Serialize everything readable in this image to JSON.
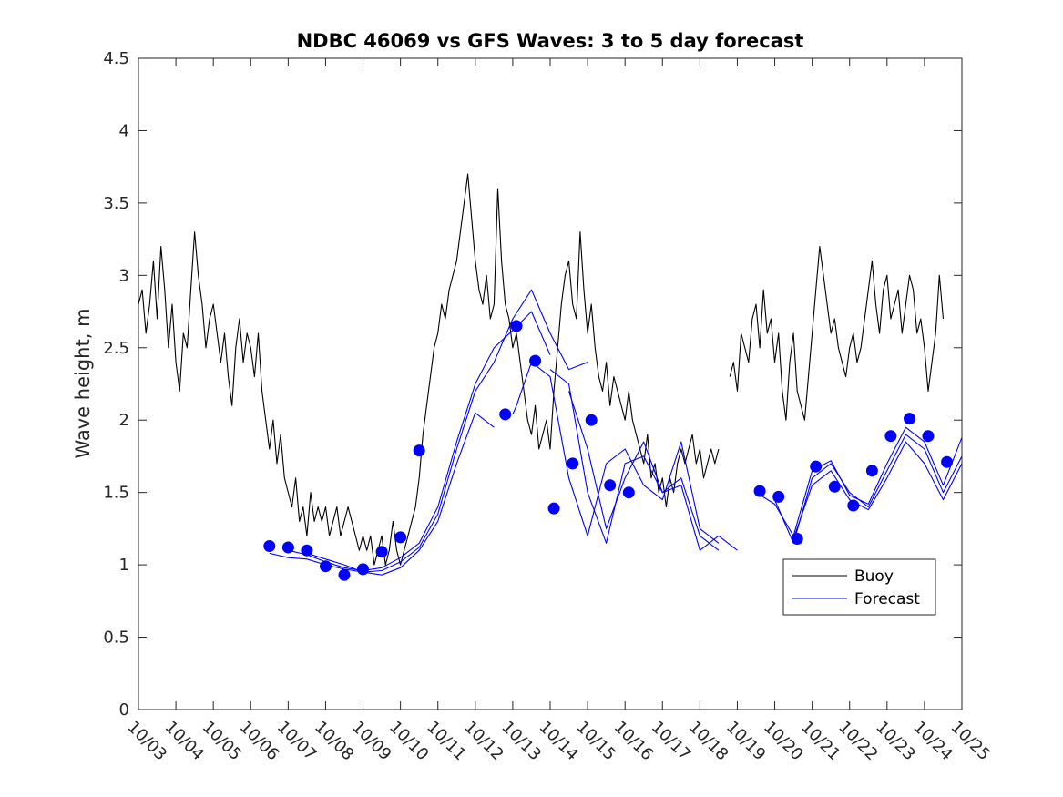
{
  "chart_data": {
    "type": "line",
    "title": "NDBC 46069 vs GFS Waves: 3 to 5 day forecast",
    "xlabel": "",
    "ylabel": "Wave height, m",
    "xlim": [
      0,
      22
    ],
    "ylim": [
      0,
      4.5
    ],
    "x_tick_labels": [
      "10/03",
      "10/04",
      "10/05",
      "10/06",
      "10/07",
      "10/08",
      "10/09",
      "10/10",
      "10/11",
      "10/12",
      "10/13",
      "10/14",
      "10/15",
      "10/16",
      "10/17",
      "10/18",
      "10/19",
      "10/20",
      "10/21",
      "10/22",
      "10/23",
      "10/24",
      "10/25"
    ],
    "y_ticks": [
      0,
      0.5,
      1,
      1.5,
      2,
      2.5,
      3,
      3.5,
      4,
      4.5
    ],
    "y_tick_labels": [
      "0",
      "0.5",
      "1",
      "1.5",
      "2",
      "2.5",
      "3",
      "3.5",
      "4",
      "4.5"
    ],
    "legend": {
      "location": "lower-right",
      "entries": [
        "Buoy",
        "Forecast"
      ]
    },
    "colors": {
      "buoy": "#000000",
      "forecast": "#0000ff",
      "axes": "#262626"
    },
    "series": [
      {
        "name": "Buoy",
        "segments": [
          {
            "x": [
              0.0,
              0.1,
              0.2,
              0.3,
              0.4,
              0.5,
              0.6,
              0.7,
              0.8,
              0.9,
              1.0,
              1.1,
              1.2,
              1.3,
              1.4,
              1.5,
              1.6,
              1.7,
              1.8,
              1.9,
              2.0,
              2.1,
              2.2,
              2.3,
              2.4,
              2.5,
              2.6,
              2.7,
              2.8,
              2.9,
              3.0,
              3.1,
              3.2,
              3.3,
              3.4,
              3.5,
              3.6,
              3.7,
              3.8,
              3.9,
              4.0,
              4.1,
              4.2,
              4.3,
              4.4,
              4.5,
              4.6,
              4.7,
              4.8,
              4.9,
              5.0,
              5.1,
              5.2,
              5.3,
              5.4,
              5.5,
              5.6,
              5.7,
              5.8,
              5.9,
              6.0,
              6.1,
              6.2,
              6.3,
              6.4,
              6.5,
              6.6,
              6.7,
              6.8,
              6.9,
              7.0,
              7.1,
              7.2,
              7.3,
              7.4,
              7.5,
              7.6,
              7.7,
              7.8,
              7.9,
              8.0,
              8.1,
              8.2,
              8.3,
              8.4,
              8.5,
              8.6,
              8.7,
              8.8,
              8.9,
              9.0,
              9.1,
              9.2,
              9.3,
              9.4,
              9.5,
              9.6,
              9.7,
              9.8,
              9.9,
              10.0,
              10.1,
              10.2,
              10.3,
              10.4,
              10.5,
              10.6,
              10.7,
              10.8,
              10.9,
              11.0,
              11.1,
              11.2,
              11.3,
              11.4,
              11.5,
              11.6,
              11.7,
              11.8,
              11.9,
              12.0,
              12.1,
              12.2,
              12.3,
              12.4,
              12.5,
              12.6,
              12.7,
              12.8,
              12.9,
              13.0,
              13.1,
              13.2,
              13.3,
              13.4,
              13.5,
              13.6,
              13.7,
              13.8,
              13.9,
              14.0,
              14.1,
              14.2,
              14.3,
              14.4,
              14.5,
              14.6,
              14.7,
              14.8,
              14.9,
              15.0,
              15.1,
              15.2,
              15.3,
              15.4,
              15.5
            ],
            "y": [
              2.8,
              2.9,
              2.6,
              2.8,
              3.1,
              2.7,
              3.2,
              2.9,
              2.5,
              2.8,
              2.4,
              2.2,
              2.6,
              2.5,
              2.9,
              3.3,
              3.0,
              2.8,
              2.5,
              2.7,
              2.8,
              2.6,
              2.4,
              2.6,
              2.3,
              2.1,
              2.5,
              2.7,
              2.4,
              2.6,
              2.5,
              2.3,
              2.6,
              2.2,
              2.0,
              1.8,
              2.0,
              1.7,
              1.9,
              1.6,
              1.5,
              1.4,
              1.6,
              1.3,
              1.4,
              1.2,
              1.5,
              1.3,
              1.4,
              1.3,
              1.4,
              1.2,
              1.3,
              1.4,
              1.2,
              1.3,
              1.4,
              1.3,
              1.2,
              1.1,
              1.2,
              1.1,
              1.2,
              1.0,
              1.1,
              1.2,
              1.0,
              1.1,
              1.3,
              1.1,
              1.0,
              1.1,
              1.2,
              1.3,
              1.4,
              1.6,
              1.9,
              2.1,
              2.3,
              2.5,
              2.6,
              2.8,
              2.7,
              2.9,
              3.0,
              3.1,
              3.3,
              3.5,
              3.7,
              3.4,
              3.1,
              2.9,
              2.8,
              3.0,
              2.7,
              2.8,
              3.6,
              3.1,
              2.8,
              2.7,
              2.5,
              2.6,
              2.4,
              2.2,
              2.0,
              1.9,
              2.1,
              1.8,
              1.9,
              2.0,
              1.8,
              2.2,
              2.5,
              2.8,
              3.0,
              3.1,
              2.8,
              2.7,
              3.3,
              2.9,
              2.6,
              2.8,
              2.5,
              2.3,
              2.2,
              2.4,
              2.1,
              2.3,
              2.2,
              2.1,
              2.0,
              2.2,
              2.0,
              1.9,
              1.8,
              1.7,
              1.9,
              1.6,
              1.7,
              1.5,
              1.6,
              1.4,
              1.6,
              1.5,
              1.7,
              1.8,
              1.7,
              1.8,
              1.9,
              1.7,
              1.8,
              1.6,
              1.7,
              1.8,
              1.7,
              1.8
            ]
          },
          {
            "x": [
              15.8,
              15.9,
              16.0,
              16.1,
              16.2,
              16.3,
              16.4,
              16.5,
              16.6,
              16.7,
              16.8,
              16.9,
              17.0,
              17.1,
              17.2,
              17.3,
              17.4,
              17.5,
              17.6,
              17.7,
              17.8,
              17.9,
              18.0,
              18.1,
              18.2,
              18.3,
              18.4,
              18.5,
              18.6,
              18.7,
              18.8,
              18.9,
              19.0,
              19.1,
              19.2,
              19.3,
              19.4,
              19.5,
              19.6,
              19.7,
              19.8,
              19.9,
              20.0,
              20.1,
              20.2,
              20.3,
              20.4,
              20.5,
              20.6,
              20.7,
              20.8,
              20.9,
              21.0,
              21.1,
              21.2,
              21.3,
              21.4,
              21.5
            ],
            "y": [
              2.3,
              2.4,
              2.2,
              2.6,
              2.5,
              2.4,
              2.7,
              2.8,
              2.5,
              2.9,
              2.6,
              2.7,
              2.4,
              2.6,
              2.2,
              2.0,
              2.4,
              2.6,
              2.2,
              2.1,
              2.0,
              2.3,
              2.6,
              2.9,
              3.2,
              3.0,
              2.8,
              2.6,
              2.7,
              2.5,
              2.4,
              2.3,
              2.5,
              2.6,
              2.4,
              2.5,
              2.7,
              2.9,
              3.1,
              2.8,
              2.6,
              2.9,
              3.0,
              2.7,
              2.8,
              2.9,
              2.6,
              2.8,
              3.0,
              2.9,
              2.6,
              2.7,
              2.5,
              2.2,
              2.4,
              2.6,
              3.0,
              2.7
            ]
          }
        ]
      },
      {
        "name": "Forecast",
        "segments": [
          {
            "x": [
              3.5,
              4.0,
              4.5,
              5.0,
              5.5,
              6.0,
              6.5,
              7.0,
              7.5,
              8.0,
              8.5,
              9.0,
              9.5,
              10.0,
              10.5,
              11.0,
              11.5,
              12.0
            ],
            "y": [
              1.08,
              1.05,
              1.04,
              1.0,
              0.97,
              0.95,
              0.96,
              1.02,
              1.12,
              1.35,
              1.8,
              2.2,
              2.4,
              2.7,
              2.9,
              2.6,
              2.35,
              2.4
            ]
          },
          {
            "x": [
              4.0,
              4.5,
              5.0,
              5.5,
              6.0,
              6.5,
              7.0,
              7.5,
              8.0,
              8.5,
              9.0,
              9.5,
              10.0,
              10.5,
              11.0
            ],
            "y": [
              1.1,
              1.07,
              1.02,
              0.98,
              0.96,
              0.98,
              1.05,
              1.15,
              1.4,
              1.85,
              2.25,
              2.5,
              2.62,
              2.75,
              2.45
            ]
          },
          {
            "x": [
              4.5,
              5.0,
              5.5,
              6.0,
              6.5,
              7.0,
              7.5,
              8.0,
              8.5,
              9.0,
              9.5
            ],
            "y": [
              1.08,
              1.04,
              1.0,
              0.95,
              0.93,
              0.98,
              1.1,
              1.3,
              1.7,
              2.05,
              1.95
            ]
          },
          {
            "x": [
              10.0,
              10.1,
              10.5,
              11.0,
              11.5,
              12.0,
              12.5,
              13.0,
              13.5,
              14.0,
              14.5,
              15.0,
              15.5
            ],
            "y": [
              2.04,
              2.1,
              2.4,
              2.3,
              1.6,
              1.2,
              1.7,
              1.8,
              1.55,
              1.45,
              1.85,
              1.25,
              1.15
            ]
          },
          {
            "x": [
              11.0,
              11.5,
              12.0,
              12.5,
              13.0,
              13.5,
              14.0,
              14.5,
              15.0,
              15.5
            ],
            "y": [
              2.35,
              2.25,
              1.5,
              1.15,
              1.7,
              1.75,
              1.5,
              1.6,
              1.2,
              1.1
            ]
          },
          {
            "x": [
              11.5,
              12.0,
              12.5,
              13.0,
              13.5,
              14.0,
              14.5,
              15.0,
              15.5,
              16.0
            ],
            "y": [
              2.2,
              1.8,
              1.25,
              1.6,
              1.85,
              1.5,
              1.55,
              1.1,
              1.2,
              1.1
            ]
          },
          {
            "x": [
              16.5,
              17.0,
              17.5,
              18.0,
              18.5,
              19.0,
              19.5,
              20.0,
              20.5,
              21.0,
              21.5,
              22.0
            ],
            "y": [
              1.5,
              1.42,
              1.2,
              1.65,
              1.72,
              1.48,
              1.42,
              1.7,
              1.95,
              1.85,
              1.55,
              1.88
            ]
          },
          {
            "x": [
              17.0,
              17.5,
              18.0,
              18.5,
              19.0,
              19.5,
              20.0,
              20.5,
              21.0,
              21.5,
              22.0
            ],
            "y": [
              1.45,
              1.15,
              1.6,
              1.7,
              1.5,
              1.4,
              1.65,
              1.9,
              1.8,
              1.5,
              1.75
            ]
          },
          {
            "x": [
              17.5,
              18.0,
              18.5,
              19.0,
              19.5,
              20.0,
              20.5,
              21.0,
              21.5,
              22.0
            ],
            "y": [
              1.18,
              1.55,
              1.65,
              1.45,
              1.38,
              1.6,
              1.85,
              1.7,
              1.45,
              1.7
            ]
          }
        ],
        "markers": {
          "x": [
            3.5,
            4.0,
            4.5,
            5.0,
            5.5,
            6.0,
            6.5,
            7.0,
            7.5,
            9.8,
            10.1,
            10.6,
            11.1,
            11.6,
            12.1,
            12.6,
            13.1,
            16.6,
            17.1,
            17.6,
            18.1,
            18.6,
            19.1,
            19.6,
            20.1,
            20.6,
            21.1,
            21.6
          ],
          "y": [
            1.13,
            1.12,
            1.1,
            0.99,
            0.93,
            0.97,
            1.09,
            1.19,
            1.79,
            2.04,
            2.65,
            2.41,
            1.39,
            1.7,
            2.0,
            1.55,
            1.5,
            1.51,
            1.47,
            1.18,
            1.68,
            1.54,
            1.41,
            1.65,
            1.89,
            2.01,
            1.89,
            1.71
          ]
        }
      }
    ]
  }
}
